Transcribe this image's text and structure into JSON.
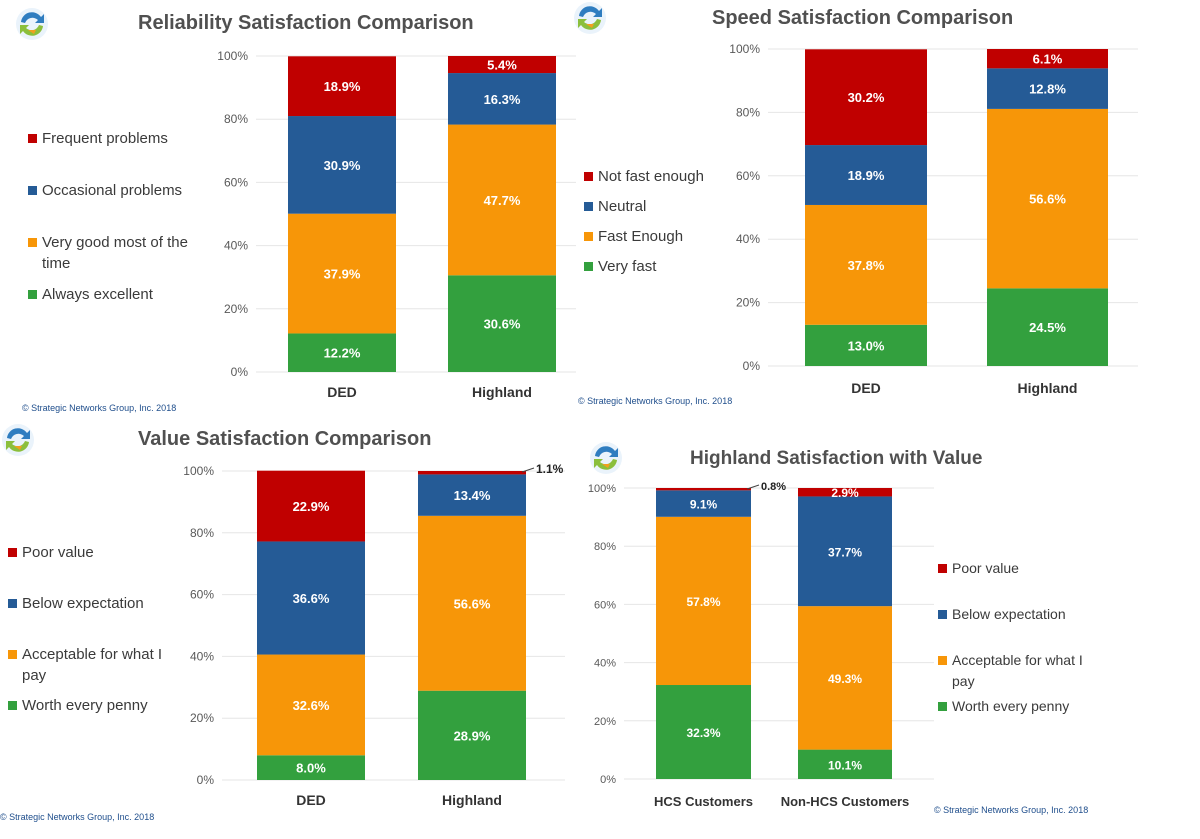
{
  "colors": {
    "red": "#c00000",
    "blue": "#255b96",
    "orange": "#f79608",
    "green": "#33a03e",
    "grid": "#e6e6e6",
    "axis_text": "#595959"
  },
  "copyright_text": "© Strategic Networks Group, Inc. 2018",
  "chart_data": [
    {
      "type": "bar",
      "stacked": true,
      "title": "Reliability Satisfaction Comparison",
      "categories": [
        "DED",
        "Highland"
      ],
      "y_ticks": [
        "0%",
        "20%",
        "40%",
        "60%",
        "80%",
        "100%"
      ],
      "ylim": [
        0,
        100
      ],
      "legend_position": "left",
      "series": [
        {
          "name": "Always excellent",
          "color": "green",
          "values": [
            12.2,
            30.6
          ],
          "labels": [
            "12.2%",
            "30.6%"
          ]
        },
        {
          "name": "Very good most of the time",
          "color": "orange",
          "values": [
            37.9,
            47.7
          ],
          "labels": [
            "37.9%",
            "47.7%"
          ]
        },
        {
          "name": "Occasional problems",
          "color": "blue",
          "values": [
            30.9,
            16.3
          ],
          "labels": [
            "30.9%",
            "16.3%"
          ]
        },
        {
          "name": "Frequent problems",
          "color": "red",
          "values": [
            18.9,
            5.4
          ],
          "labels": [
            "18.9%",
            "5.4%"
          ]
        }
      ]
    },
    {
      "type": "bar",
      "stacked": true,
      "title": "Speed Satisfaction Comparison",
      "categories": [
        "DED",
        "Highland"
      ],
      "y_ticks": [
        "0%",
        "20%",
        "40%",
        "60%",
        "80%",
        "100%"
      ],
      "ylim": [
        0,
        100
      ],
      "legend_position": "left",
      "series": [
        {
          "name": "Very fast",
          "color": "green",
          "values": [
            13.0,
            24.5
          ],
          "labels": [
            "13.0%",
            "24.5%"
          ]
        },
        {
          "name": "Fast Enough",
          "color": "orange",
          "values": [
            37.8,
            56.6
          ],
          "labels": [
            "37.8%",
            "56.6%"
          ]
        },
        {
          "name": "Neutral",
          "color": "blue",
          "values": [
            18.9,
            12.8
          ],
          "labels": [
            "18.9%",
            "12.8%"
          ]
        },
        {
          "name": "Not fast enough",
          "color": "red",
          "values": [
            30.2,
            6.1
          ],
          "labels": [
            "30.2%",
            "6.1%"
          ]
        }
      ]
    },
    {
      "type": "bar",
      "stacked": true,
      "title": "Value Satisfaction Comparison",
      "categories": [
        "DED",
        "Highland"
      ],
      "y_ticks": [
        "0%",
        "20%",
        "40%",
        "60%",
        "80%",
        "100%"
      ],
      "ylim": [
        0,
        100
      ],
      "legend_position": "left",
      "series": [
        {
          "name": "Worth every penny",
          "color": "green",
          "values": [
            8.0,
            28.9
          ],
          "labels": [
            "8.0%",
            "28.9%"
          ]
        },
        {
          "name": "Acceptable for what I pay",
          "color": "orange",
          "values": [
            32.6,
            56.6
          ],
          "labels": [
            "32.6%",
            "56.6%"
          ]
        },
        {
          "name": "Below expectation",
          "color": "blue",
          "values": [
            36.6,
            13.4
          ],
          "labels": [
            "36.6%",
            "13.4%"
          ]
        },
        {
          "name": "Poor value",
          "color": "red",
          "values": [
            22.9,
            1.1
          ],
          "labels": [
            "22.9%",
            "1.1%"
          ]
        }
      ]
    },
    {
      "type": "bar",
      "stacked": true,
      "title": "Highland Satisfaction with Value",
      "categories": [
        "HCS Customers",
        "Non-HCS Customers"
      ],
      "y_ticks": [
        "0%",
        "20%",
        "40%",
        "60%",
        "80%",
        "100%"
      ],
      "ylim": [
        0,
        100
      ],
      "legend_position": "right",
      "series": [
        {
          "name": "Worth every penny",
          "color": "green",
          "values": [
            32.3,
            10.1
          ],
          "labels": [
            "32.3%",
            "10.1%"
          ]
        },
        {
          "name": "Acceptable for what I pay",
          "color": "orange",
          "values": [
            57.8,
            49.3
          ],
          "labels": [
            "57.8%",
            "49.3%"
          ]
        },
        {
          "name": "Below expectation",
          "color": "blue",
          "values": [
            9.1,
            37.7
          ],
          "labels": [
            "9.1%",
            "37.7%"
          ]
        },
        {
          "name": "Poor value",
          "color": "red",
          "values": [
            0.8,
            2.9
          ],
          "labels": [
            "0.8%",
            "2.9%"
          ]
        }
      ]
    }
  ]
}
